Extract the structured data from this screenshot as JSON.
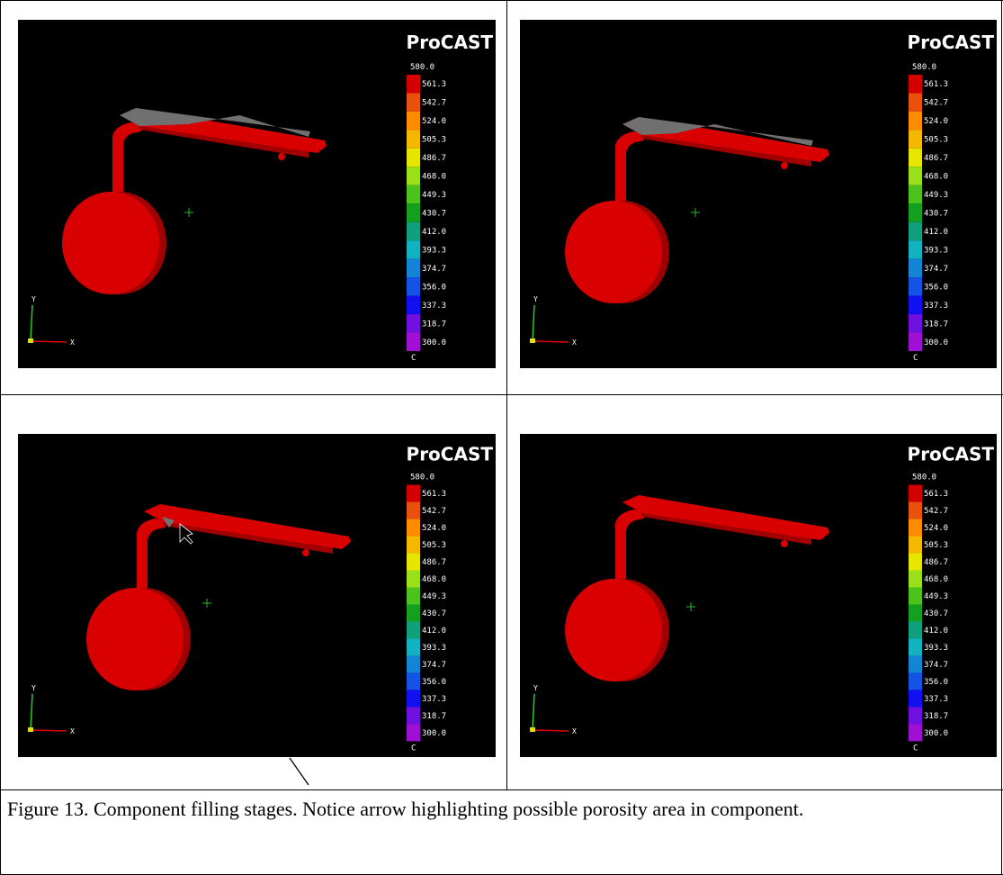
{
  "panels": [
    {
      "brand": "ProCAST",
      "scale": [
        "580.0",
        "561.3",
        "542.7",
        "524.0",
        "505.3",
        "486.7",
        "468.0",
        "449.3",
        "430.7",
        "412.0",
        "393.3",
        "374.7",
        "356.0",
        "337.3",
        "318.7",
        "300.0"
      ],
      "unit": "C",
      "axis_y": "Y",
      "axis_x": "X"
    },
    {
      "brand": "ProCAST",
      "scale": [
        "580.0",
        "561.3",
        "542.7",
        "524.0",
        "505.3",
        "486.7",
        "468.0",
        "449.3",
        "430.7",
        "412.0",
        "393.3",
        "374.7",
        "356.0",
        "337.3",
        "318.7",
        "300.0"
      ],
      "unit": "C",
      "axis_y": "Y",
      "axis_x": "X"
    },
    {
      "brand": "ProCAST",
      "scale": [
        "580.0",
        "561.3",
        "542.7",
        "524.0",
        "505.3",
        "486.7",
        "468.0",
        "449.3",
        "430.7",
        "412.0",
        "393.3",
        "374.7",
        "356.0",
        "337.3",
        "318.7",
        "300.0"
      ],
      "unit": "C",
      "axis_y": "Y",
      "axis_x": "X"
    },
    {
      "brand": "ProCAST",
      "scale": [
        "580.0",
        "561.3",
        "542.7",
        "524.0",
        "505.3",
        "486.7",
        "468.0",
        "449.3",
        "430.7",
        "412.0",
        "393.3",
        "374.7",
        "356.0",
        "337.3",
        "318.7",
        "300.0"
      ],
      "unit": "C",
      "axis_y": "Y",
      "axis_x": "X"
    }
  ],
  "scale_colors": [
    "#d40000",
    "#e8500c",
    "#ff8c00",
    "#f5b800",
    "#e6e600",
    "#9ae01a",
    "#4cc21c",
    "#12a01e",
    "#11a07e",
    "#12b2c0",
    "#1484d4",
    "#1454e4",
    "#1010f0",
    "#7010e0",
    "#a010d4",
    "#b410b4"
  ],
  "caption": "Figure 13. Component filling stages. Notice arrow highlighting possible porosity area in component."
}
